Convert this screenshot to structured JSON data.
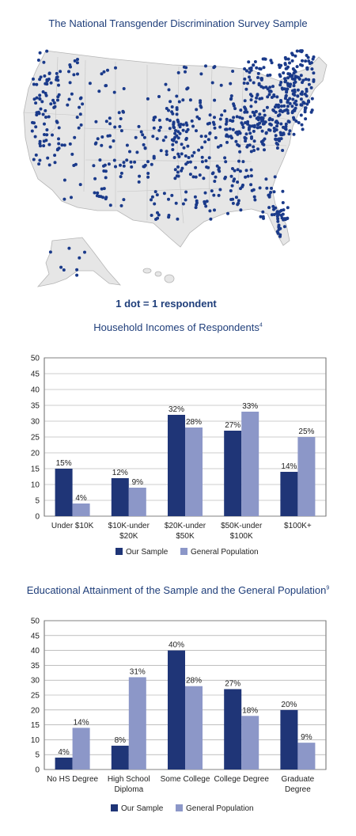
{
  "map": {
    "title": "The National Transgender Discrimination Survey Sample",
    "note": "1 dot = 1 respondent",
    "colors": {
      "land": "#e6e6e6",
      "border": "#b5b5b5",
      "dot": "#1a3a8a"
    }
  },
  "chart_data": [
    {
      "type": "bar",
      "title": "Household Incomes of Respondents",
      "title_sup": "4",
      "categories": [
        [
          "Under $10K"
        ],
        [
          "$10K-under",
          "$20K"
        ],
        [
          "$20K-under",
          "$50K"
        ],
        [
          "$50K-under",
          "$100K"
        ],
        [
          "$100K+"
        ]
      ],
      "series": [
        {
          "name": "Our Sample",
          "color": "#1f3577",
          "values": [
            15,
            12,
            32,
            27,
            14
          ]
        },
        {
          "name": "General Population",
          "color": "#8c97c8",
          "values": [
            4,
            9,
            28,
            33,
            25
          ]
        }
      ],
      "value_labels": [
        [
          "15%",
          "12%",
          "32%",
          "27%",
          "14%"
        ],
        [
          "4%",
          "9%",
          "28%",
          "33%",
          "25%"
        ]
      ],
      "ylim": [
        0,
        50
      ],
      "yticks": [
        0,
        5,
        10,
        15,
        20,
        25,
        30,
        35,
        40,
        45,
        50
      ],
      "grid": true,
      "legend": "bottom"
    },
    {
      "type": "bar",
      "title": "Educational Attainment of the Sample and the General Population",
      "title_sup": "9",
      "categories": [
        [
          "No HS Degree"
        ],
        [
          "High School",
          "Diploma"
        ],
        [
          "Some College"
        ],
        [
          "College Degree"
        ],
        [
          "Graduate",
          "Degree"
        ]
      ],
      "series": [
        {
          "name": "Our Sample",
          "color": "#1f3577",
          "values": [
            4,
            8,
            40,
            27,
            20
          ]
        },
        {
          "name": "General Population",
          "color": "#8c97c8",
          "values": [
            14,
            31,
            28,
            18,
            9
          ]
        }
      ],
      "value_labels": [
        [
          "4%",
          "8%",
          "40%",
          "27%",
          "20%"
        ],
        [
          "14%",
          "31%",
          "28%",
          "18%",
          "9%"
        ]
      ],
      "ylim": [
        0,
        50
      ],
      "yticks": [
        0,
        5,
        10,
        15,
        20,
        25,
        30,
        35,
        40,
        45,
        50
      ],
      "grid": true,
      "legend": "bottom"
    }
  ]
}
